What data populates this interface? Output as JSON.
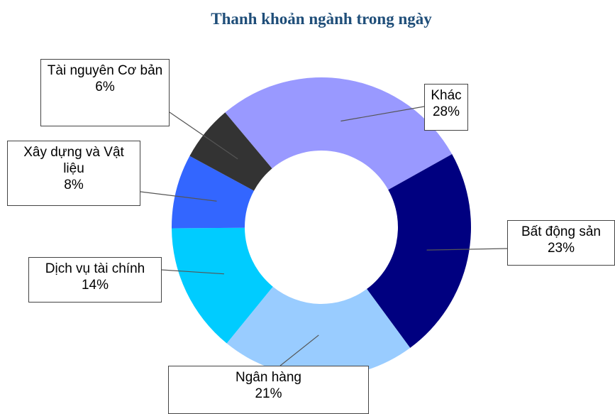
{
  "chart_data": {
    "type": "donut",
    "title": "Thanh khoản ngành trong ngày",
    "categories": [
      "Khác",
      "Bất động sản",
      "Ngân hàng",
      "Dịch vụ tài chính",
      "Xây dựng và Vật liệu",
      "Tài nguyên Cơ bản"
    ],
    "values": [
      28,
      23,
      21,
      14,
      8,
      6
    ],
    "value_labels": [
      "28%",
      "23%",
      "21%",
      "14%",
      "8%",
      "6%"
    ],
    "colors": [
      "#9999ff",
      "#000080",
      "#99ccff",
      "#00ccff",
      "#3366ff",
      "#333333"
    ]
  }
}
